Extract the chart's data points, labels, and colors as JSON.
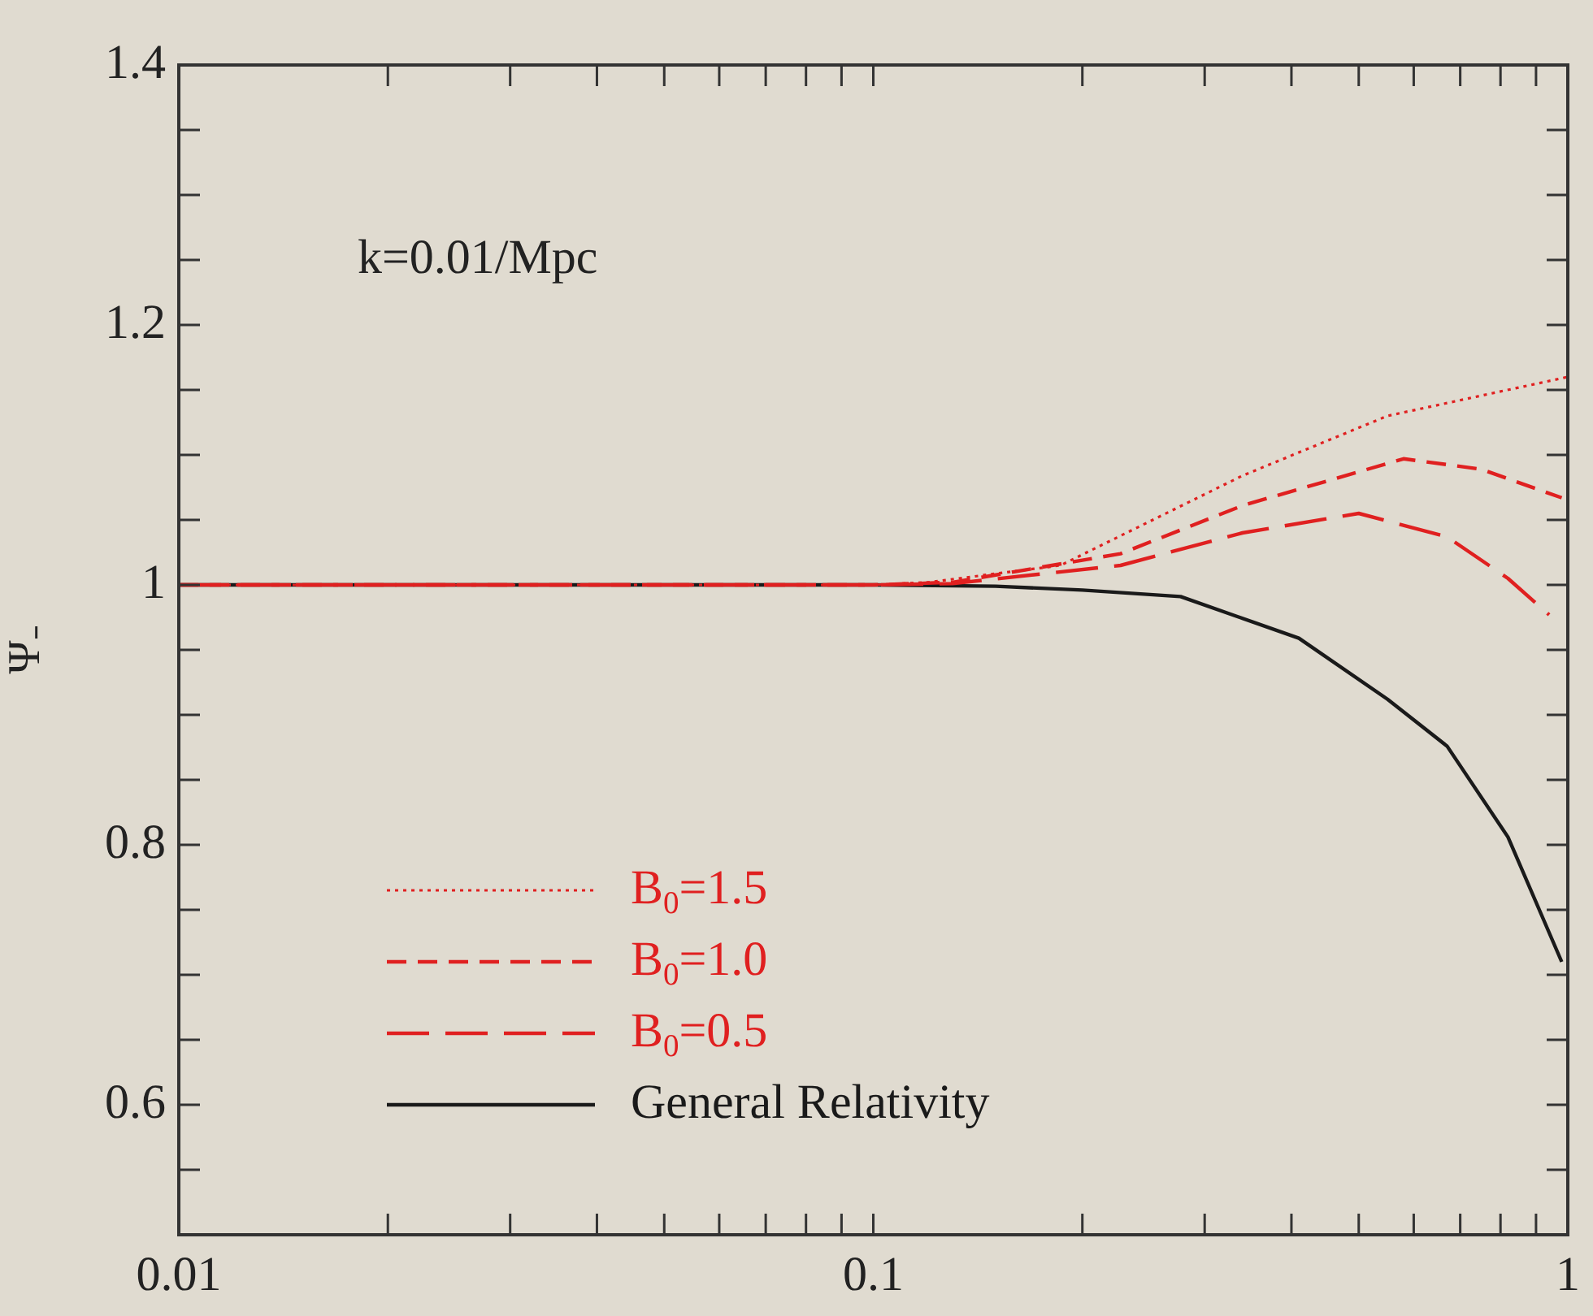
{
  "chart_data": {
    "type": "line",
    "annotations": [
      "k=0.01/Mpc"
    ],
    "ylabel": "Ψ₋",
    "log": "x",
    "xlim": [
      0.01,
      1
    ],
    "xticks": [
      0.01,
      {
        "value": 0.02,
        "label": null
      },
      {
        "value": 0.03,
        "label": null
      },
      {
        "value": 0.04,
        "label": null
      },
      {
        "value": 0.05,
        "label": null
      },
      {
        "value": 0.06,
        "label": null
      },
      {
        "value": 0.07,
        "label": null
      },
      {
        "value": 0.08,
        "label": null
      },
      {
        "value": 0.09,
        "label": null
      },
      0.1,
      {
        "value": 0.2,
        "label": null
      },
      {
        "value": 0.3,
        "label": null
      },
      {
        "value": 0.4,
        "label": null
      },
      {
        "value": 0.5,
        "label": null
      },
      {
        "value": 0.6,
        "label": null
      },
      {
        "value": 0.7,
        "label": null
      },
      {
        "value": 0.8,
        "label": null
      },
      {
        "value": 0.9,
        "label": null
      },
      1
    ],
    "ylim": [
      0.5,
      1.4
    ],
    "yticks": [
      {
        "value": 0.55,
        "label": null
      },
      0.6,
      {
        "value": 0.65,
        "label": null
      },
      {
        "value": 0.7,
        "label": null
      },
      {
        "value": 0.75,
        "label": null
      },
      0.8,
      {
        "value": 0.85,
        "label": null
      },
      {
        "value": 0.9,
        "label": null
      },
      {
        "value": 0.95,
        "label": null
      },
      1,
      {
        "value": 1.05,
        "label": null
      },
      {
        "value": 1.1,
        "label": null
      },
      {
        "value": 1.15,
        "label": null
      },
      1.2,
      {
        "value": 1.25,
        "label": null
      },
      {
        "value": 1.3,
        "label": null
      },
      {
        "value": 1.35,
        "label": null
      },
      1.4
    ],
    "grid": false,
    "legend": "bottom left",
    "marker": "none",
    "series": [
      {
        "name": "B$_{0}$=1.5",
        "color": "#e02020",
        "line_style": "dotted",
        "x": [
          0.01,
          0.1,
          0.12,
          0.186,
          0.34,
          0.55,
          1.0
        ],
        "values": [
          1,
          1,
          1.002,
          1.015,
          1.084,
          1.13,
          1.16
        ]
      },
      {
        "name": "B$_{0}$=1.0",
        "color": "#e02020",
        "line_style": "dashed",
        "x": [
          0.01,
          0.1,
          0.13,
          0.227,
          0.34,
          0.58,
          0.75,
          0.98
        ],
        "values": [
          1,
          1,
          1.002,
          1.024,
          1.061,
          1.097,
          1.089,
          1.067
        ]
      },
      {
        "name": "B$_{0}$=0.5",
        "color": "#e02020",
        "line_style": "dashed",
        "x": [
          0.01,
          0.1,
          0.13,
          0.227,
          0.34,
          0.5,
          0.67,
          0.82,
          0.94
        ],
        "values": [
          1,
          1,
          1.001,
          1.015,
          1.04,
          1.055,
          1.037,
          1.005,
          0.977
        ]
      },
      {
        "name": "General Relativity",
        "color": "#1a1a1a",
        "line_style": "solid",
        "x": [
          0.01,
          0.1,
          0.15,
          0.2,
          0.277,
          0.41,
          0.55,
          0.67,
          0.82,
          0.98
        ],
        "values": [
          1,
          1,
          0.999,
          0.996,
          0.991,
          0.959,
          0.912,
          0.876,
          0.806,
          0.71
        ]
      }
    ]
  }
}
